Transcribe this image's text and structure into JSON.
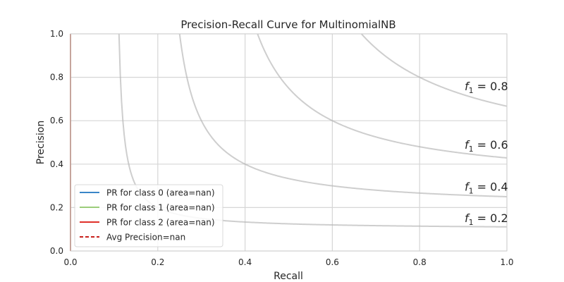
{
  "chart_data": {
    "type": "line",
    "title": "Precision-Recall Curve for MultinomialNB",
    "xlabel": "Recall",
    "ylabel": "Precision",
    "xlim": [
      0.0,
      1.0
    ],
    "ylim": [
      0.0,
      1.0
    ],
    "x_ticks": [
      "0.0",
      "0.2",
      "0.4",
      "0.6",
      "0.8",
      "1.0"
    ],
    "y_ticks": [
      "0.0",
      "0.2",
      "0.4",
      "0.6",
      "0.8",
      "1.0"
    ],
    "grid": true,
    "legend_position": "lower-left",
    "iso_f1_curves": [
      {
        "f1": 0.2,
        "label_var": "f",
        "label_sub": "1",
        "label_value": " = 0.2"
      },
      {
        "f1": 0.4,
        "label_var": "f",
        "label_sub": "1",
        "label_value": " = 0.4"
      },
      {
        "f1": 0.6,
        "label_var": "f",
        "label_sub": "1",
        "label_value": " = 0.6"
      },
      {
        "f1": 0.8,
        "label_var": "f",
        "label_sub": "1",
        "label_value": " = 0.8"
      }
    ],
    "series": [
      {
        "name": "PR for class 0 (area=nan)",
        "color": "#3a86c8",
        "dash": false,
        "points": [
          [
            0.0,
            0.0
          ],
          [
            0.0,
            1.0
          ]
        ]
      },
      {
        "name": "PR for class 1 (area=nan)",
        "color": "#9ccd7a",
        "dash": false,
        "points": [
          [
            0.0,
            0.0
          ],
          [
            0.0,
            1.0
          ]
        ]
      },
      {
        "name": "PR for class 2 (area=nan)",
        "color": "#e0302a",
        "dash": false,
        "points": [
          [
            0.0,
            0.0
          ],
          [
            0.0,
            1.0
          ]
        ]
      },
      {
        "name": "Avg Precision=nan",
        "color": "#c8201c",
        "dash": true,
        "points": []
      }
    ]
  }
}
